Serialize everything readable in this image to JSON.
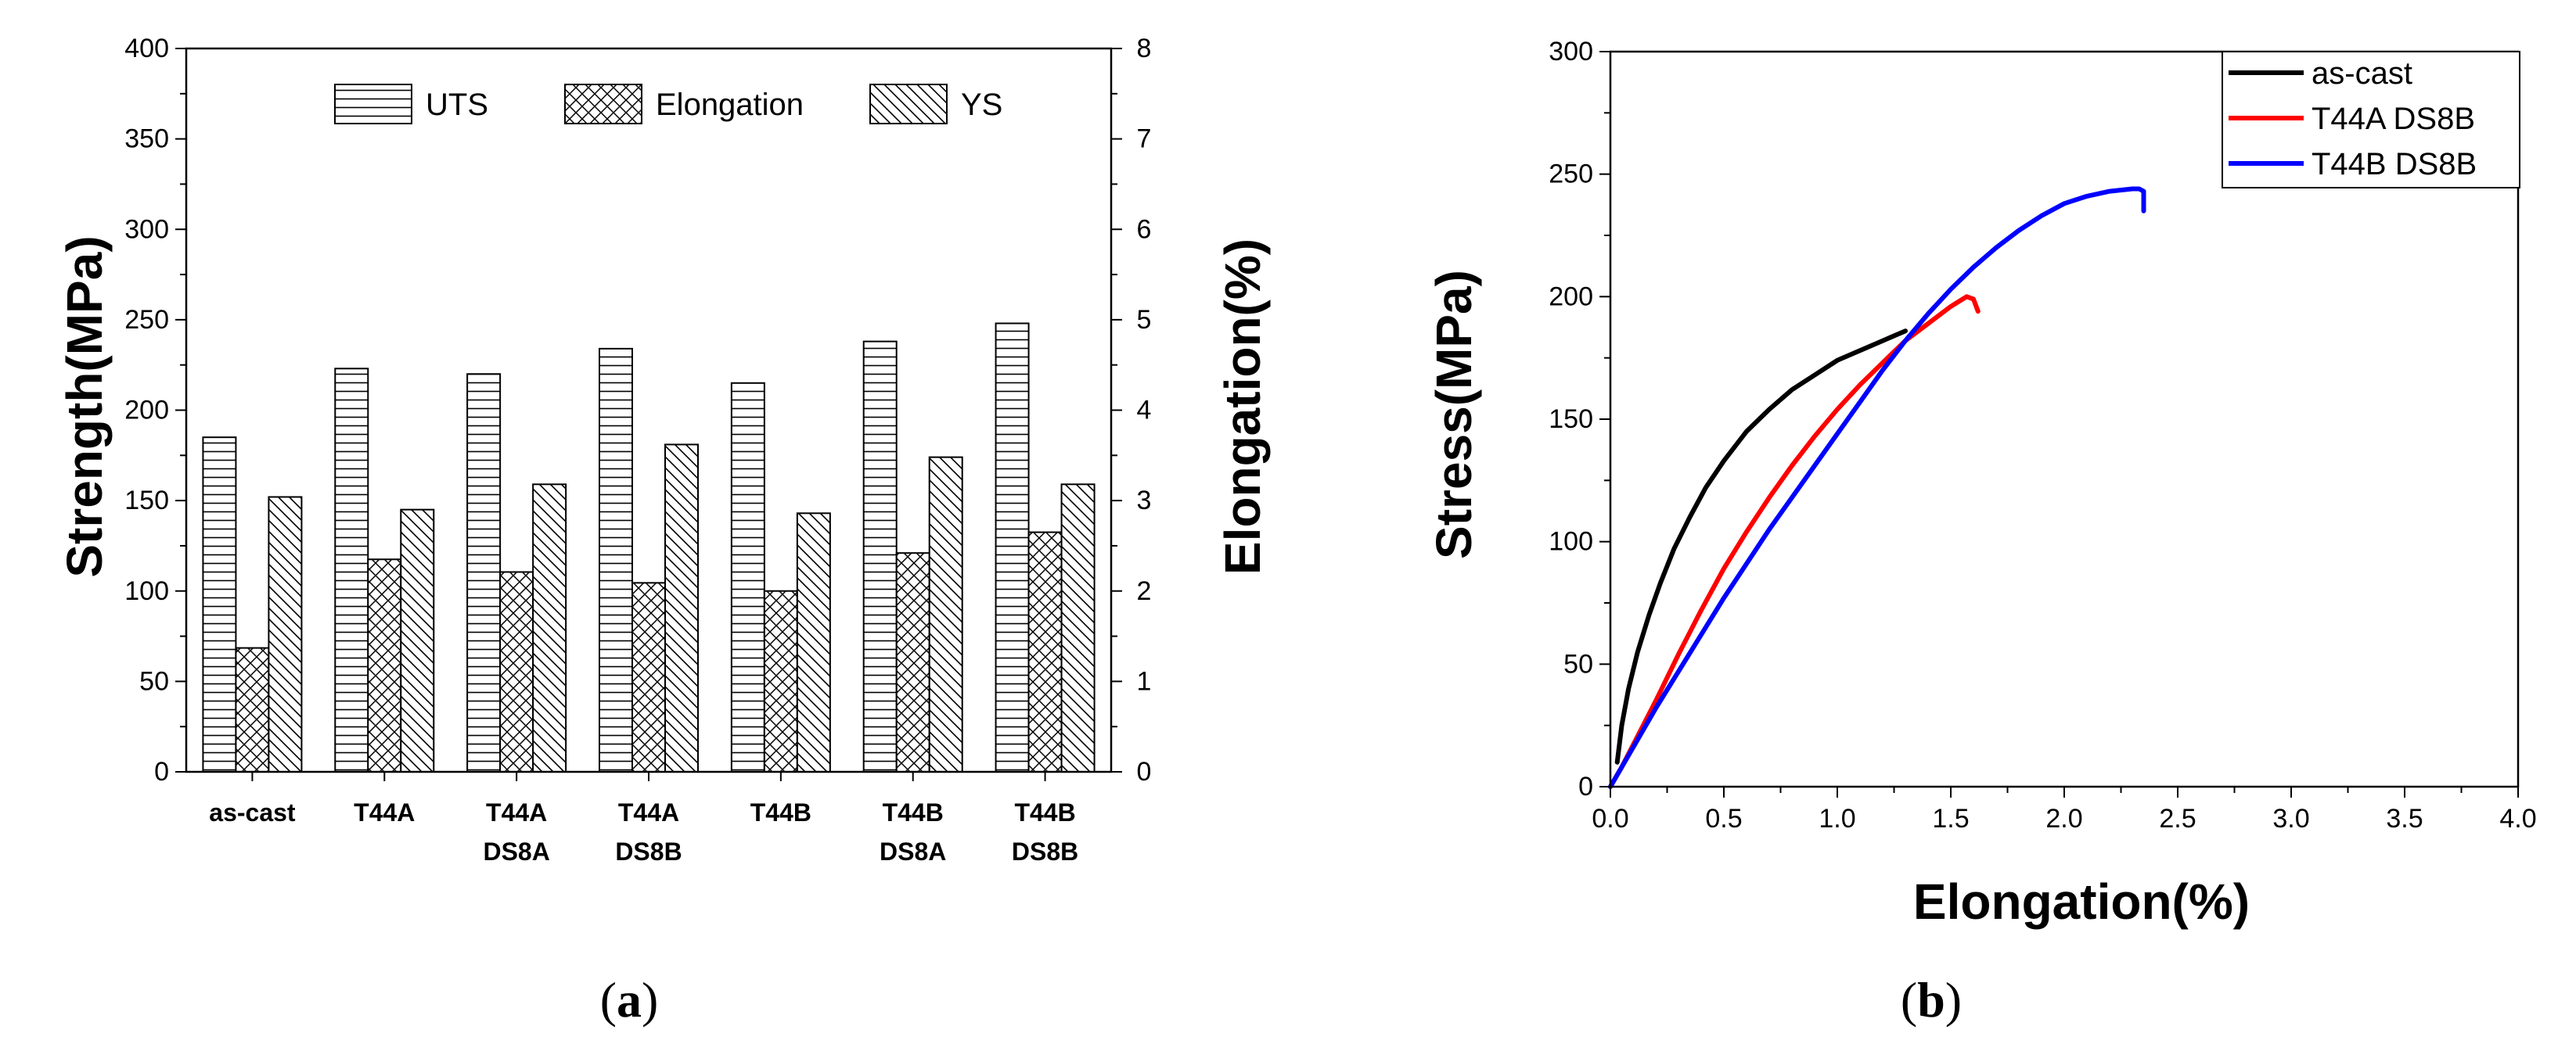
{
  "chart_data": [
    {
      "type": "bar",
      "panel": "a",
      "title": "",
      "caption_paren_open": "(",
      "caption_letter": "a",
      "caption_paren_close": ")",
      "xlabel": "",
      "ylabel": "Strength(MPa)",
      "y2label": "Elongation(%)",
      "ylim": [
        0,
        400
      ],
      "y2lim": [
        0,
        8
      ],
      "yticks": [
        "0",
        "50",
        "100",
        "150",
        "200",
        "250",
        "300",
        "350",
        "400"
      ],
      "y2ticks": [
        "0",
        "1",
        "2",
        "3",
        "4",
        "5",
        "6",
        "7",
        "8"
      ],
      "categories": [
        [
          "as-cast"
        ],
        [
          "T44A"
        ],
        [
          "T44A",
          "DS8A"
        ],
        [
          "T44A",
          "DS8B"
        ],
        [
          "T44B"
        ],
        [
          "T44B",
          "DS8A"
        ],
        [
          "T44B",
          "DS8B"
        ]
      ],
      "series": [
        {
          "name": "UTS",
          "axis": "left",
          "pattern": "horizontal",
          "values": [
            185,
            223,
            220,
            234,
            215,
            238,
            248
          ]
        },
        {
          "name": "Elongation",
          "axis": "right",
          "pattern": "crosshatch",
          "values": [
            1.37,
            2.35,
            2.21,
            2.09,
            2.0,
            2.42,
            2.65
          ]
        },
        {
          "name": "YS",
          "axis": "left",
          "pattern": "backslash",
          "values": [
            152,
            145,
            159,
            181,
            143,
            174,
            159
          ]
        }
      ],
      "legend_position": "top"
    },
    {
      "type": "line",
      "panel": "b",
      "title": "",
      "caption_paren_open": "(",
      "caption_letter": "b",
      "caption_paren_close": ")",
      "xlabel": "Elongation(%)",
      "ylabel": "Stress(MPa)",
      "xlim": [
        0,
        4
      ],
      "ylim": [
        0,
        300
      ],
      "xticks": [
        "0.0",
        "0.5",
        "1.0",
        "1.5",
        "2.0",
        "2.5",
        "3.0",
        "3.5",
        "4.0"
      ],
      "yticks": [
        "0",
        "50",
        "100",
        "150",
        "200",
        "250",
        "300"
      ],
      "legend_position": "top-right",
      "series": [
        {
          "name": "as-cast",
          "color": "#000000",
          "x": [
            0.03,
            0.05,
            0.08,
            0.12,
            0.17,
            0.22,
            0.28,
            0.35,
            0.42,
            0.5,
            0.6,
            0.7,
            0.8,
            0.9,
            1.0,
            1.1,
            1.2,
            1.3
          ],
          "y": [
            10,
            25,
            40,
            55,
            70,
            83,
            97,
            110,
            122,
            133,
            145,
            154,
            162,
            168,
            174,
            178,
            182,
            186
          ]
        },
        {
          "name": "T44A DS8B",
          "color": "#ff0000",
          "x": [
            0.0,
            0.05,
            0.1,
            0.2,
            0.3,
            0.4,
            0.5,
            0.6,
            0.7,
            0.8,
            0.9,
            1.0,
            1.1,
            1.2,
            1.3,
            1.4,
            1.5,
            1.57,
            1.6,
            1.62
          ],
          "y": [
            0,
            8,
            17,
            35,
            54,
            72,
            89,
            104,
            118,
            131,
            143,
            154,
            164,
            173,
            182,
            189,
            196,
            200,
            199,
            194
          ]
        },
        {
          "name": "T44B DS8B",
          "color": "#0000ff",
          "x": [
            0.0,
            0.1,
            0.2,
            0.3,
            0.4,
            0.5,
            0.6,
            0.7,
            0.8,
            0.9,
            1.0,
            1.1,
            1.2,
            1.3,
            1.4,
            1.5,
            1.6,
            1.7,
            1.8,
            1.9,
            2.0,
            2.1,
            2.2,
            2.3,
            2.33,
            2.35,
            2.35
          ],
          "y": [
            0,
            16,
            32,
            47,
            62,
            77,
            91,
            105,
            118,
            131,
            144,
            157,
            170,
            182,
            193,
            203,
            212,
            220,
            227,
            233,
            238,
            241,
            243,
            244,
            244,
            243,
            235
          ]
        }
      ]
    }
  ]
}
